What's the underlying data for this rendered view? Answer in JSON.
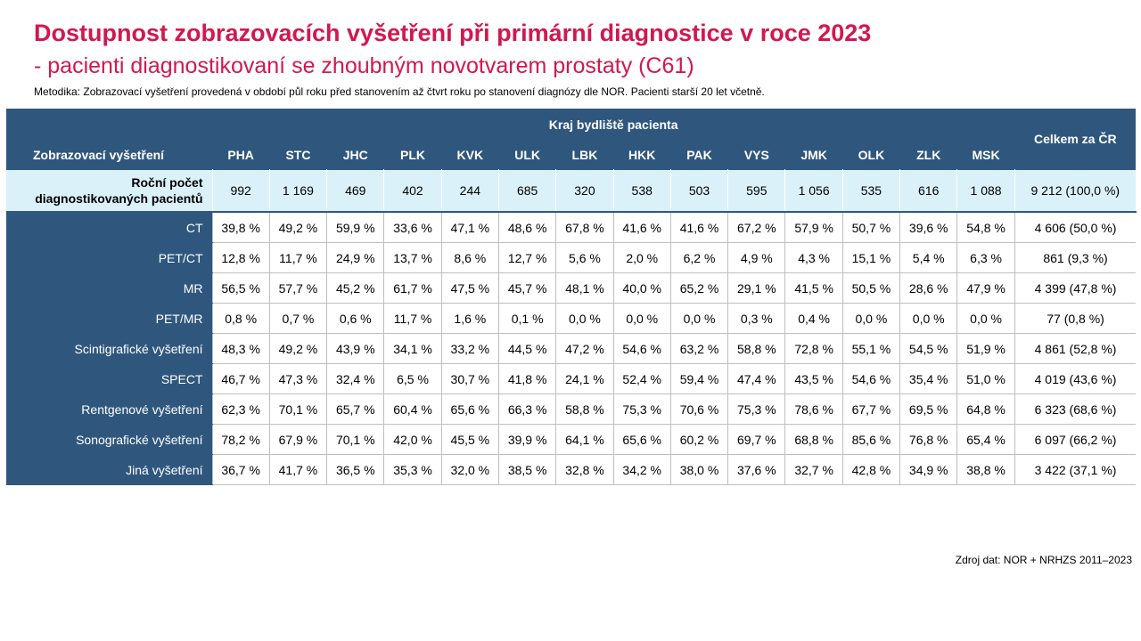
{
  "title": "Dostupnost zobrazovacích vyšetření při primární diagnostice v roce 2023",
  "subtitle": "- pacienti diagnostikovaní se zhoubným novotvarem prostaty (C61)",
  "methodology": "Metodika: Zobrazovací vyšetření provedená v období půl roku před stanovením až čtvrt roku po stanovení diagnózy dle NOR. Pacienti starší 20 let včetně.",
  "source": "Zdroj dat: NOR + NRHZS 2011–2023",
  "table": {
    "row_header": "Zobrazovací vyšetření",
    "group_header": "Kraj bydliště pacienta",
    "total_header": "Celkem za ČR",
    "regions": [
      "PHA",
      "STC",
      "JHC",
      "PLK",
      "KVK",
      "ULK",
      "LBK",
      "HKK",
      "PAK",
      "VYS",
      "JMK",
      "OLK",
      "ZLK",
      "MSK"
    ],
    "count_row": {
      "label_line1": "Roční počet",
      "label_line2": "diagnostikovaných pacientů",
      "values": [
        "992",
        "1 169",
        "469",
        "402",
        "244",
        "685",
        "320",
        "538",
        "503",
        "595",
        "1 056",
        "535",
        "616",
        "1 088"
      ],
      "total": "9 212 (100,0 %)"
    },
    "rows": [
      {
        "label": "CT",
        "values": [
          "39,8 %",
          "49,2 %",
          "59,9 %",
          "33,6 %",
          "47,1 %",
          "48,6 %",
          "67,8 %",
          "41,6 %",
          "41,6 %",
          "67,2 %",
          "57,9 %",
          "50,7 %",
          "39,6 %",
          "54,8 %"
        ],
        "total": "4 606 (50,0 %)"
      },
      {
        "label": "PET/CT",
        "values": [
          "12,8 %",
          "11,7 %",
          "24,9 %",
          "13,7 %",
          "8,6 %",
          "12,7 %",
          "5,6 %",
          "2,0 %",
          "6,2 %",
          "4,9 %",
          "4,3 %",
          "15,1 %",
          "5,4 %",
          "6,3 %"
        ],
        "total": "861 (9,3 %)"
      },
      {
        "label": "MR",
        "values": [
          "56,5 %",
          "57,7 %",
          "45,2 %",
          "61,7 %",
          "47,5 %",
          "45,7 %",
          "48,1 %",
          "40,0 %",
          "65,2 %",
          "29,1 %",
          "41,5 %",
          "50,5 %",
          "28,6 %",
          "47,9 %"
        ],
        "total": "4 399 (47,8 %)"
      },
      {
        "label": "PET/MR",
        "values": [
          "0,8 %",
          "0,7 %",
          "0,6 %",
          "11,7 %",
          "1,6 %",
          "0,1 %",
          "0,0 %",
          "0,0 %",
          "0,0 %",
          "0,3 %",
          "0,4 %",
          "0,0 %",
          "0,0 %",
          "0,0 %"
        ],
        "total": "77 (0,8 %)"
      },
      {
        "label": "Scintigrafické vyšetření",
        "values": [
          "48,3 %",
          "49,2 %",
          "43,9 %",
          "34,1 %",
          "33,2 %",
          "44,5 %",
          "47,2 %",
          "54,6 %",
          "63,2 %",
          "58,8 %",
          "72,8 %",
          "55,1 %",
          "54,5 %",
          "51,9 %"
        ],
        "total": "4 861 (52,8 %)"
      },
      {
        "label": "SPECT",
        "values": [
          "46,7 %",
          "47,3 %",
          "32,4 %",
          "6,5 %",
          "30,7 %",
          "41,8 %",
          "24,1 %",
          "52,4 %",
          "59,4 %",
          "47,4 %",
          "43,5 %",
          "54,6 %",
          "35,4 %",
          "51,0 %"
        ],
        "total": "4 019 (43,6 %)"
      },
      {
        "label": "Rentgenové vyšetření",
        "values": [
          "62,3 %",
          "70,1 %",
          "65,7 %",
          "60,4 %",
          "65,6 %",
          "66,3 %",
          "58,8 %",
          "75,3 %",
          "70,6 %",
          "75,3 %",
          "78,6 %",
          "67,7 %",
          "69,5 %",
          "64,8 %"
        ],
        "total": "6 323 (68,6 %)"
      },
      {
        "label": "Sonografické vyšetření",
        "values": [
          "78,2 %",
          "67,9 %",
          "70,1 %",
          "42,0 %",
          "45,5 %",
          "39,9 %",
          "64,1 %",
          "65,6 %",
          "60,2 %",
          "69,7 %",
          "68,8 %",
          "85,6 %",
          "76,8 %",
          "65,4 %"
        ],
        "total": "6 097 (66,2 %)"
      },
      {
        "label": "Jiná vyšetření",
        "values": [
          "36,7 %",
          "41,7 %",
          "36,5 %",
          "35,3 %",
          "32,0 %",
          "38,5 %",
          "32,8 %",
          "34,2 %",
          "38,0 %",
          "37,6 %",
          "32,7 %",
          "42,8 %",
          "34,9 %",
          "38,8 %"
        ],
        "total": "3 422 (37,1 %)"
      }
    ]
  }
}
